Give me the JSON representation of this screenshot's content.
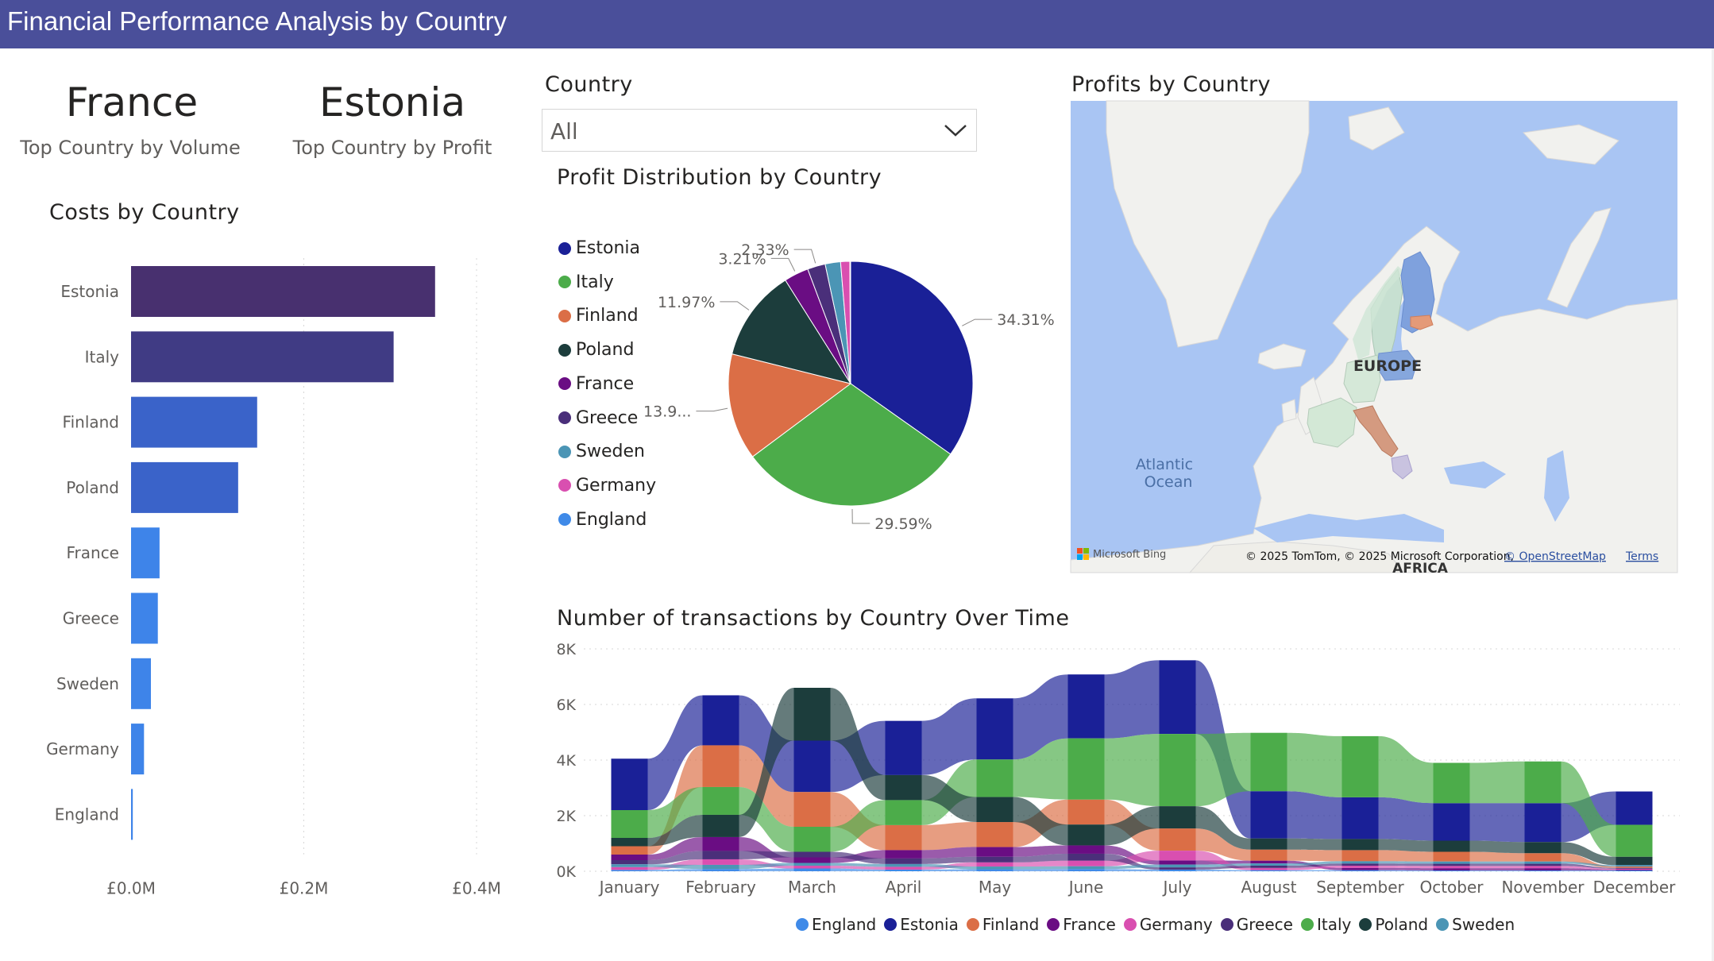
{
  "header": {
    "title": "Financial Performance Analysis by Country"
  },
  "cards": [
    {
      "value": "France",
      "label": "Top Country by Volume"
    },
    {
      "value": "Estonia",
      "label": "Top Country by Profit"
    }
  ],
  "slicer": {
    "title": "Country",
    "value": "All"
  },
  "map": {
    "title": "Profits by Country",
    "region_label": "EUROPE",
    "ocean_label_1": "Atlantic",
    "ocean_label_2": "Ocean",
    "continent_label": "AFRICA",
    "brand": "Microsoft Bing",
    "attribution": "© 2025 TomTom, © 2025 Microsoft Corporation, ",
    "attribution_link": "© OpenStreetMap",
    "terms": "Terms"
  },
  "colors": {
    "England": "#3f8ae8",
    "Estonia": "#1a2097",
    "Finland": "#db6e46",
    "France": "#6a0d83",
    "Germany": "#d94fb0",
    "Greece": "#4a2f7a",
    "Italy": "#4cac4a",
    "Poland": "#1c3d3c",
    "Sweden": "#4b95b5"
  },
  "chart_data": [
    {
      "type": "bar",
      "orientation": "horizontal",
      "title": "Costs by Country",
      "categories": [
        "Estonia",
        "Italy",
        "Finland",
        "Poland",
        "France",
        "Greece",
        "Sweden",
        "Germany",
        "England"
      ],
      "values": [
        352000,
        304000,
        146000,
        124000,
        33000,
        31000,
        23000,
        15000,
        2000
      ],
      "bar_colors": [
        "#48306f",
        "#403b84",
        "#3a63c9",
        "#3a63c9",
        "#3e84e9",
        "#3e84e9",
        "#3e84e9",
        "#3e84e9",
        "#3e84e9"
      ],
      "xlim": [
        0,
        400000
      ],
      "xticks": [
        0,
        200000,
        400000
      ],
      "xtick_labels": [
        "£0.0M",
        "£0.2M",
        "£0.4M"
      ]
    },
    {
      "type": "pie",
      "title": "Profit Distribution by Country",
      "legend": [
        "Estonia",
        "Italy",
        "Finland",
        "Poland",
        "France",
        "Greece",
        "Sweden",
        "Germany",
        "England"
      ],
      "slices": [
        {
          "name": "Estonia",
          "value": 34.31,
          "label": "34.31%"
        },
        {
          "name": "Italy",
          "value": 29.59,
          "label": "29.59%"
        },
        {
          "name": "Finland",
          "value": 13.9,
          "label": "13.9..."
        },
        {
          "name": "Poland",
          "value": 11.97,
          "label": "11.97%"
        },
        {
          "name": "France",
          "value": 3.21,
          "label": "3.21%"
        },
        {
          "name": "Greece",
          "value": 2.33,
          "label": "2.33%"
        },
        {
          "name": "Sweden",
          "value": 2.0,
          "label": ""
        },
        {
          "name": "Germany",
          "value": 1.2,
          "label": ""
        },
        {
          "name": "England",
          "value": 0.1,
          "label": ""
        }
      ]
    },
    {
      "type": "area",
      "subtype": "ribbon",
      "title": "Number of transactions by Country Over Time",
      "categories": [
        "January",
        "February",
        "March",
        "April",
        "May",
        "June",
        "July",
        "August",
        "September",
        "October",
        "November",
        "December"
      ],
      "ylim": [
        0,
        8000
      ],
      "yticks": [
        0,
        2000,
        4000,
        6000,
        8000
      ],
      "ytick_labels": [
        "0K",
        "2K",
        "4K",
        "6K",
        "8K"
      ],
      "legend_position": "bottom",
      "series": [
        {
          "name": "England",
          "values": [
            50,
            80,
            100,
            60,
            70,
            80,
            60,
            40,
            40,
            30,
            30,
            30
          ]
        },
        {
          "name": "Estonia",
          "values": [
            1850,
            1800,
            1850,
            1950,
            2200,
            2300,
            2650,
            1700,
            1500,
            1350,
            1400,
            1200
          ]
        },
        {
          "name": "Finland",
          "values": [
            300,
            1500,
            1250,
            900,
            900,
            900,
            800,
            400,
            400,
            350,
            300,
            50
          ]
        },
        {
          "name": "France",
          "values": [
            200,
            500,
            200,
            300,
            350,
            300,
            150,
            100,
            80,
            80,
            80,
            30
          ]
        },
        {
          "name": "Germany",
          "values": [
            100,
            200,
            100,
            100,
            150,
            200,
            350,
            80,
            80,
            80,
            80,
            30
          ]
        },
        {
          "name": "Greece",
          "values": [
            150,
            300,
            200,
            200,
            200,
            250,
            80,
            80,
            80,
            80,
            80,
            30
          ]
        },
        {
          "name": "Italy",
          "values": [
            1000,
            1000,
            900,
            900,
            1350,
            2200,
            2600,
            2100,
            2200,
            1450,
            1500,
            1150
          ]
        },
        {
          "name": "Poland",
          "values": [
            300,
            800,
            1900,
            900,
            900,
            750,
            800,
            400,
            400,
            400,
            400,
            300
          ]
        },
        {
          "name": "Sweden",
          "values": [
            100,
            150,
            100,
            100,
            100,
            100,
            100,
            80,
            80,
            80,
            80,
            50
          ]
        }
      ]
    }
  ]
}
